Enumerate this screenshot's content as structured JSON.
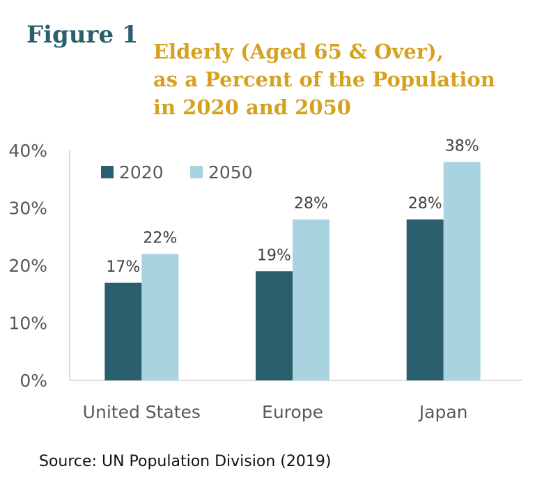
{
  "figure_label": "Figure 1",
  "source": "Source: UN Population Division (2019)",
  "colors": {
    "2020": "#2b5f6e",
    "2050": "#aad3e0",
    "title": "#d4a21f",
    "figure": "#2b5f6e"
  },
  "chart_data": {
    "type": "bar",
    "title_lines": [
      "Elderly (Aged 65 & Over),",
      "as a Percent of the Population",
      "in 2020 and 2050"
    ],
    "categories": [
      "United States",
      "Europe",
      "Japan"
    ],
    "series": [
      {
        "name": "2020",
        "values": [
          17,
          19,
          28
        ],
        "labels": [
          "17%",
          "19%",
          "28%"
        ]
      },
      {
        "name": "2050",
        "values": [
          22,
          28,
          38
        ],
        "labels": [
          "22%",
          "28%",
          "38%"
        ]
      }
    ],
    "y_ticks": [
      "0%",
      "10%",
      "20%",
      "30%",
      "40%"
    ],
    "ylim": [
      0,
      40
    ],
    "grid": false,
    "legend_position": "top-left"
  }
}
